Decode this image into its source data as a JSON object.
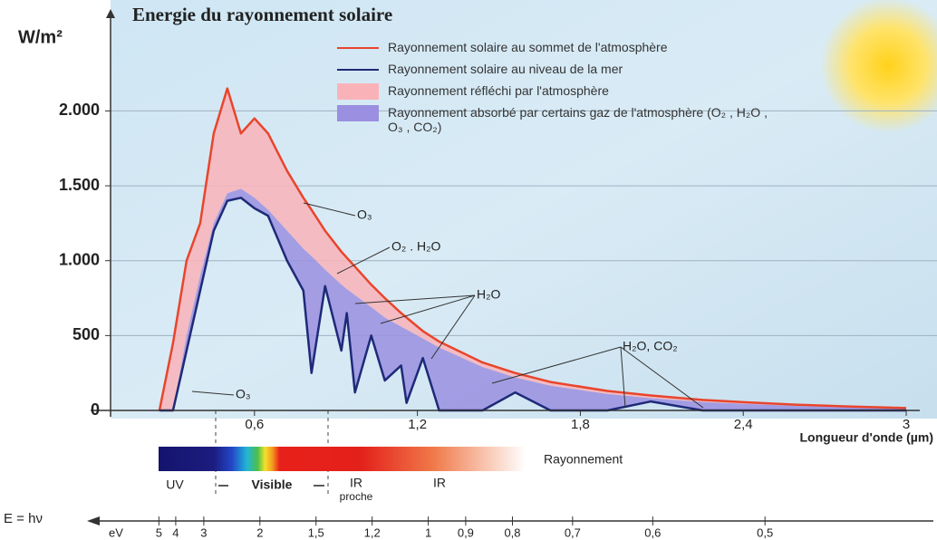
{
  "chart_data": {
    "type": "line",
    "title": "Energie du rayonnement solaire",
    "y_label": "W/m²",
    "x_label": "Longueur d'onde (µm)",
    "grid": true,
    "xlim": [
      0.07,
      3.05
    ],
    "ylim": [
      0,
      2650
    ],
    "xticks": [
      {
        "value": 0.6,
        "label": "0,6"
      },
      {
        "value": 1.2,
        "label": "1,2"
      },
      {
        "value": 1.8,
        "label": "1,8"
      },
      {
        "value": 2.4,
        "label": "2,4"
      },
      3
    ],
    "yticks": [
      0,
      500,
      {
        "value": 1000,
        "label": "1.000"
      },
      {
        "value": 1500,
        "label": "1.500"
      },
      {
        "value": 2000,
        "label": "2.000"
      }
    ],
    "x": [
      0.25,
      0.3,
      0.35,
      0.4,
      0.45,
      0.5,
      0.55,
      0.6,
      0.65,
      0.72,
      0.78,
      0.81,
      0.86,
      0.92,
      0.94,
      0.97,
      1.03,
      1.08,
      1.14,
      1.16,
      1.22,
      1.28,
      1.44,
      1.56,
      1.69,
      1.9,
      2.06,
      2.25,
      2.4,
      2.6,
      2.8,
      3.0
    ],
    "series": [
      {
        "name": "Rayonnement solaire au sommet de l'atmosphère",
        "color": "#e8452c",
        "kind": "line",
        "values": [
          0,
          450,
          1000,
          1250,
          1850,
          2150,
          1850,
          1950,
          1850,
          1600,
          1420,
          1340,
          1200,
          1060,
          1020,
          960,
          840,
          750,
          650,
          620,
          530,
          460,
          320,
          250,
          190,
          130,
          100,
          70,
          55,
          38,
          26,
          16
        ]
      },
      {
        "name": "Rayonnement solaire au niveau de la mer",
        "color": "#1e2a78",
        "kind": "line",
        "values": [
          0,
          0,
          400,
          800,
          1200,
          1400,
          1420,
          1350,
          1300,
          1000,
          800,
          250,
          830,
          400,
          650,
          120,
          500,
          200,
          300,
          50,
          350,
          0,
          0,
          120,
          0,
          0,
          60,
          0,
          0,
          0,
          0,
          0
        ]
      },
      {
        "name": "Rayonnement réfléchi par l'atmosphère",
        "color": "#f9b3b8",
        "kind": "area",
        "values": [
          0,
          450,
          1000,
          1250,
          1850,
          2150,
          1850,
          1950,
          1850,
          1600,
          1420,
          1340,
          1200,
          1060,
          1020,
          960,
          840,
          750,
          650,
          620,
          530,
          460,
          320,
          250,
          190,
          130,
          100,
          70,
          55,
          38,
          26,
          16
        ]
      },
      {
        "name": "Rayonnement absorbé par certains gaz de l'atmosphère (O₂ , H₂O , O₃ , CO₂)",
        "color": "#9a8fe0",
        "kind": "area",
        "values": [
          0,
          0,
          500,
          900,
          1250,
          1450,
          1480,
          1420,
          1340,
          1200,
          1080,
          1030,
          940,
          840,
          810,
          770,
          690,
          620,
          560,
          540,
          480,
          420,
          290,
          220,
          165,
          110,
          82,
          56,
          44,
          30,
          20,
          12
        ]
      }
    ],
    "annotations": [
      "O₃",
      "O₂ . H₂O",
      "H₂O",
      "H₂O, CO₂",
      "O₃"
    ],
    "spectrum": {
      "title": "Rayonnement",
      "uv": "UV",
      "visible": "Visible",
      "ir_near": [
        "IR",
        "proche"
      ],
      "ir": "IR"
    },
    "energy_axis": {
      "label": "E = hν",
      "unit": "eV",
      "ticks": [
        5,
        4,
        3,
        2,
        {
          "value": 1.5,
          "label": "1,5"
        },
        {
          "value": 1.2,
          "label": "1,2"
        },
        1,
        {
          "value": 0.9,
          "label": "0,9"
        },
        {
          "value": 0.8,
          "label": "0,8"
        },
        {
          "value": 0.7,
          "label": "0,7"
        },
        {
          "value": 0.6,
          "label": "0,6"
        },
        {
          "value": 0.5,
          "label": "0,5"
        }
      ]
    }
  }
}
